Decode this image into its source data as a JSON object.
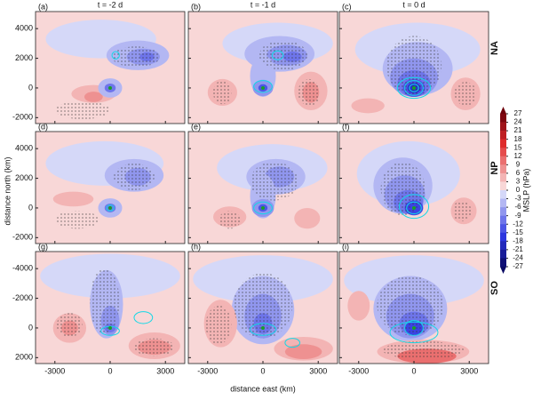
{
  "columns": [
    "t = -2 d",
    "t = -1 d",
    "t = 0 d"
  ],
  "panels": [
    "(a)",
    "(b)",
    "(c)",
    "(d)",
    "(e)",
    "(f)",
    "(g)",
    "(h)",
    "(i)"
  ],
  "rows": [
    {
      "label": "NA",
      "ylim": [
        -2400,
        5150
      ],
      "yticks": [
        4000,
        2000,
        0,
        -2000
      ]
    },
    {
      "label": "NP",
      "ylim": [
        -2400,
        5150
      ],
      "yticks": [
        4000,
        2000,
        0,
        -2000
      ]
    },
    {
      "label": "SO",
      "ylim": [
        2400,
        -5150
      ],
      "yticks": [
        -4000,
        -2000,
        0,
        2000
      ]
    }
  ],
  "x_axis": {
    "label": "distance east (km)",
    "xlim": [
      -4050,
      4050
    ],
    "xticks": [
      -3000,
      0,
      3000
    ]
  },
  "y_axis": {
    "label": "distance north (km)"
  },
  "colorbar": {
    "label": "MSLP (hPa)",
    "ticks": [
      27,
      24,
      21,
      18,
      15,
      12,
      9,
      6,
      3,
      0,
      -3,
      -6,
      -9,
      -12,
      -15,
      -18,
      -21,
      -24,
      -27
    ]
  }
}
